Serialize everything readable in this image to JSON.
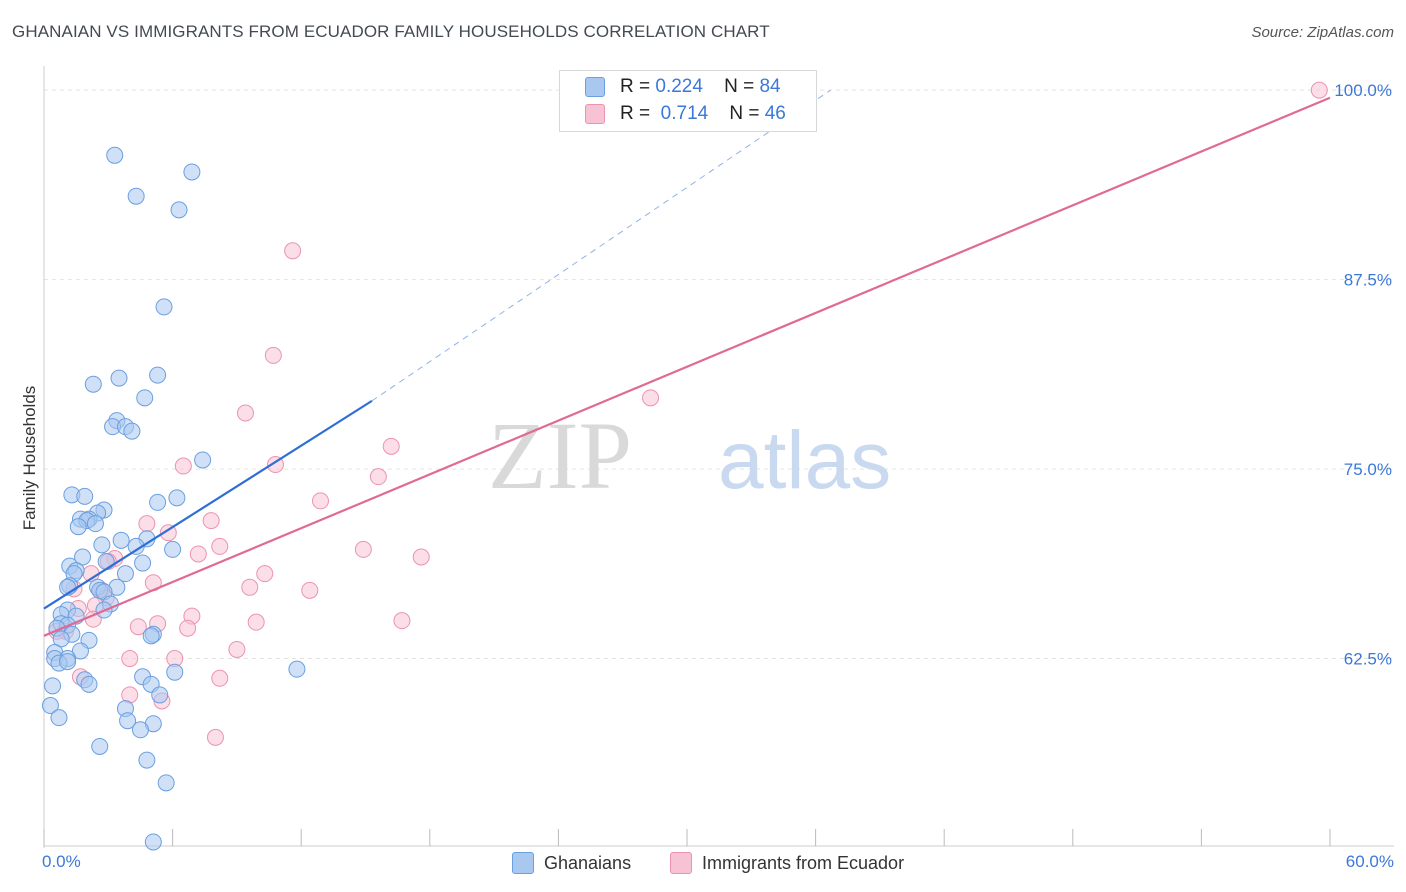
{
  "title": "GHANAIAN VS IMMIGRANTS FROM ECUADOR FAMILY HOUSEHOLDS CORRELATION CHART",
  "source": "Source: ZipAtlas.com",
  "watermark": {
    "part1": "ZIP",
    "part2": "atlas"
  },
  "stats": {
    "row1": {
      "r_label": "R =",
      "r_value": "0.224",
      "n_label": "N =",
      "n_value": "84"
    },
    "row2": {
      "r_label": "R =",
      "r_value": "0.714",
      "n_label": "N =",
      "n_value": "46"
    }
  },
  "legend": {
    "series1": "Ghanaians",
    "series2": "Immigrants from Ecuador"
  },
  "colors": {
    "blue_fill": "#a9c8f0",
    "blue_stroke": "#6a9fe0",
    "blue_line": "#2f6fd3",
    "pink_fill": "#f7c2d3",
    "pink_stroke": "#ec93b0",
    "pink_line": "#e06a95",
    "axis_text": "#3b78d8",
    "grid": "#e3e3e3"
  },
  "chart_data": {
    "type": "scatter",
    "title": "GHANAIAN VS IMMIGRANTS FROM ECUADOR FAMILY HOUSEHOLDS CORRELATION CHART",
    "xlabel": "",
    "ylabel": "Family Households",
    "xlim": [
      0,
      60
    ],
    "ylim": [
      50.2,
      100.8
    ],
    "x_tick_labels": [
      "0.0%",
      "60.0%"
    ],
    "y_ticks": [
      62.5,
      75.0,
      87.5,
      100.0
    ],
    "y_tick_labels": [
      "62.5%",
      "75.0%",
      "87.5%",
      "100.0%"
    ],
    "series": [
      {
        "name": "Ghanaians",
        "r": 0.224,
        "n": 84,
        "trend": {
          "x_start": 0.0,
          "y_start": 65.8,
          "x_end": 15.3,
          "y_end": 79.5,
          "dash_x_end": 36.7,
          "dash_y_end": 100.0
        },
        "points": [
          [
            3.3,
            95.7
          ],
          [
            6.9,
            94.6
          ],
          [
            4.3,
            93.0
          ],
          [
            6.3,
            92.1
          ],
          [
            5.6,
            85.7
          ],
          [
            2.3,
            80.6
          ],
          [
            3.5,
            81.0
          ],
          [
            5.3,
            81.2
          ],
          [
            4.7,
            79.7
          ],
          [
            3.4,
            78.2
          ],
          [
            3.2,
            77.8
          ],
          [
            3.8,
            77.8
          ],
          [
            4.1,
            77.5
          ],
          [
            7.4,
            75.6
          ],
          [
            1.3,
            73.3
          ],
          [
            1.9,
            73.2
          ],
          [
            6.2,
            73.1
          ],
          [
            5.3,
            72.8
          ],
          [
            2.8,
            72.3
          ],
          [
            2.5,
            72.1
          ],
          [
            1.7,
            71.7
          ],
          [
            2.1,
            71.7
          ],
          [
            2.0,
            71.6
          ],
          [
            2.4,
            71.4
          ],
          [
            1.6,
            71.2
          ],
          [
            4.8,
            70.4
          ],
          [
            3.6,
            70.3
          ],
          [
            2.7,
            70.0
          ],
          [
            4.3,
            69.9
          ],
          [
            6.0,
            69.7
          ],
          [
            1.8,
            69.2
          ],
          [
            2.9,
            68.9
          ],
          [
            4.6,
            68.8
          ],
          [
            1.2,
            68.6
          ],
          [
            1.5,
            68.3
          ],
          [
            3.8,
            68.1
          ],
          [
            1.4,
            68.1
          ],
          [
            1.2,
            67.3
          ],
          [
            1.1,
            67.2
          ],
          [
            2.5,
            67.2
          ],
          [
            2.6,
            67.0
          ],
          [
            3.4,
            67.2
          ],
          [
            2.8,
            66.9
          ],
          [
            3.1,
            66.1
          ],
          [
            2.8,
            65.7
          ],
          [
            1.1,
            65.7
          ],
          [
            0.8,
            65.4
          ],
          [
            1.5,
            65.3
          ],
          [
            0.8,
            64.8
          ],
          [
            1.1,
            64.7
          ],
          [
            0.6,
            64.5
          ],
          [
            1.3,
            64.1
          ],
          [
            5.1,
            64.1
          ],
          [
            5.0,
            64.0
          ],
          [
            0.8,
            63.8
          ],
          [
            2.1,
            63.7
          ],
          [
            1.7,
            63.0
          ],
          [
            0.5,
            62.9
          ],
          [
            0.5,
            62.5
          ],
          [
            1.1,
            62.5
          ],
          [
            0.7,
            62.2
          ],
          [
            1.1,
            62.3
          ],
          [
            11.8,
            61.8
          ],
          [
            6.1,
            61.6
          ],
          [
            4.6,
            61.3
          ],
          [
            1.9,
            61.1
          ],
          [
            2.1,
            60.8
          ],
          [
            5.0,
            60.8
          ],
          [
            0.4,
            60.7
          ],
          [
            5.4,
            60.1
          ],
          [
            0.3,
            59.4
          ],
          [
            3.8,
            59.2
          ],
          [
            0.7,
            58.6
          ],
          [
            3.9,
            58.4
          ],
          [
            5.1,
            58.2
          ],
          [
            4.5,
            57.8
          ],
          [
            2.6,
            56.7
          ],
          [
            4.8,
            55.8
          ],
          [
            5.7,
            54.3
          ],
          [
            5.1,
            50.4
          ]
        ]
      },
      {
        "name": "Immigrants from Ecuador",
        "r": 0.714,
        "n": 46,
        "trend": {
          "x_start": 0.0,
          "y_start": 64.0,
          "x_end": 60.0,
          "y_end": 99.5
        },
        "points": [
          [
            59.5,
            100.0
          ],
          [
            11.6,
            89.4
          ],
          [
            10.7,
            82.5
          ],
          [
            28.3,
            79.7
          ],
          [
            9.4,
            78.7
          ],
          [
            16.2,
            76.5
          ],
          [
            6.5,
            75.2
          ],
          [
            10.8,
            75.3
          ],
          [
            15.6,
            74.5
          ],
          [
            12.9,
            72.9
          ],
          [
            7.8,
            71.6
          ],
          [
            4.8,
            71.4
          ],
          [
            5.8,
            70.8
          ],
          [
            8.2,
            69.9
          ],
          [
            14.9,
            69.7
          ],
          [
            7.2,
            69.4
          ],
          [
            17.6,
            69.2
          ],
          [
            3.3,
            69.1
          ],
          [
            3.0,
            68.9
          ],
          [
            2.2,
            68.1
          ],
          [
            10.3,
            68.1
          ],
          [
            1.4,
            67.1
          ],
          [
            5.1,
            67.5
          ],
          [
            9.6,
            67.2
          ],
          [
            12.4,
            67.0
          ],
          [
            2.7,
            67.0
          ],
          [
            2.9,
            66.5
          ],
          [
            2.4,
            66.0
          ],
          [
            1.6,
            65.8
          ],
          [
            6.9,
            65.3
          ],
          [
            2.3,
            65.1
          ],
          [
            16.7,
            65.0
          ],
          [
            9.9,
            64.9
          ],
          [
            5.3,
            64.8
          ],
          [
            4.4,
            64.6
          ],
          [
            6.7,
            64.5
          ],
          [
            1.0,
            64.3
          ],
          [
            0.6,
            64.3
          ],
          [
            9.0,
            63.1
          ],
          [
            4.0,
            62.5
          ],
          [
            6.1,
            62.5
          ],
          [
            8.2,
            61.2
          ],
          [
            1.7,
            61.3
          ],
          [
            4.0,
            60.1
          ],
          [
            5.5,
            59.7
          ],
          [
            8.0,
            57.3
          ]
        ]
      }
    ]
  }
}
